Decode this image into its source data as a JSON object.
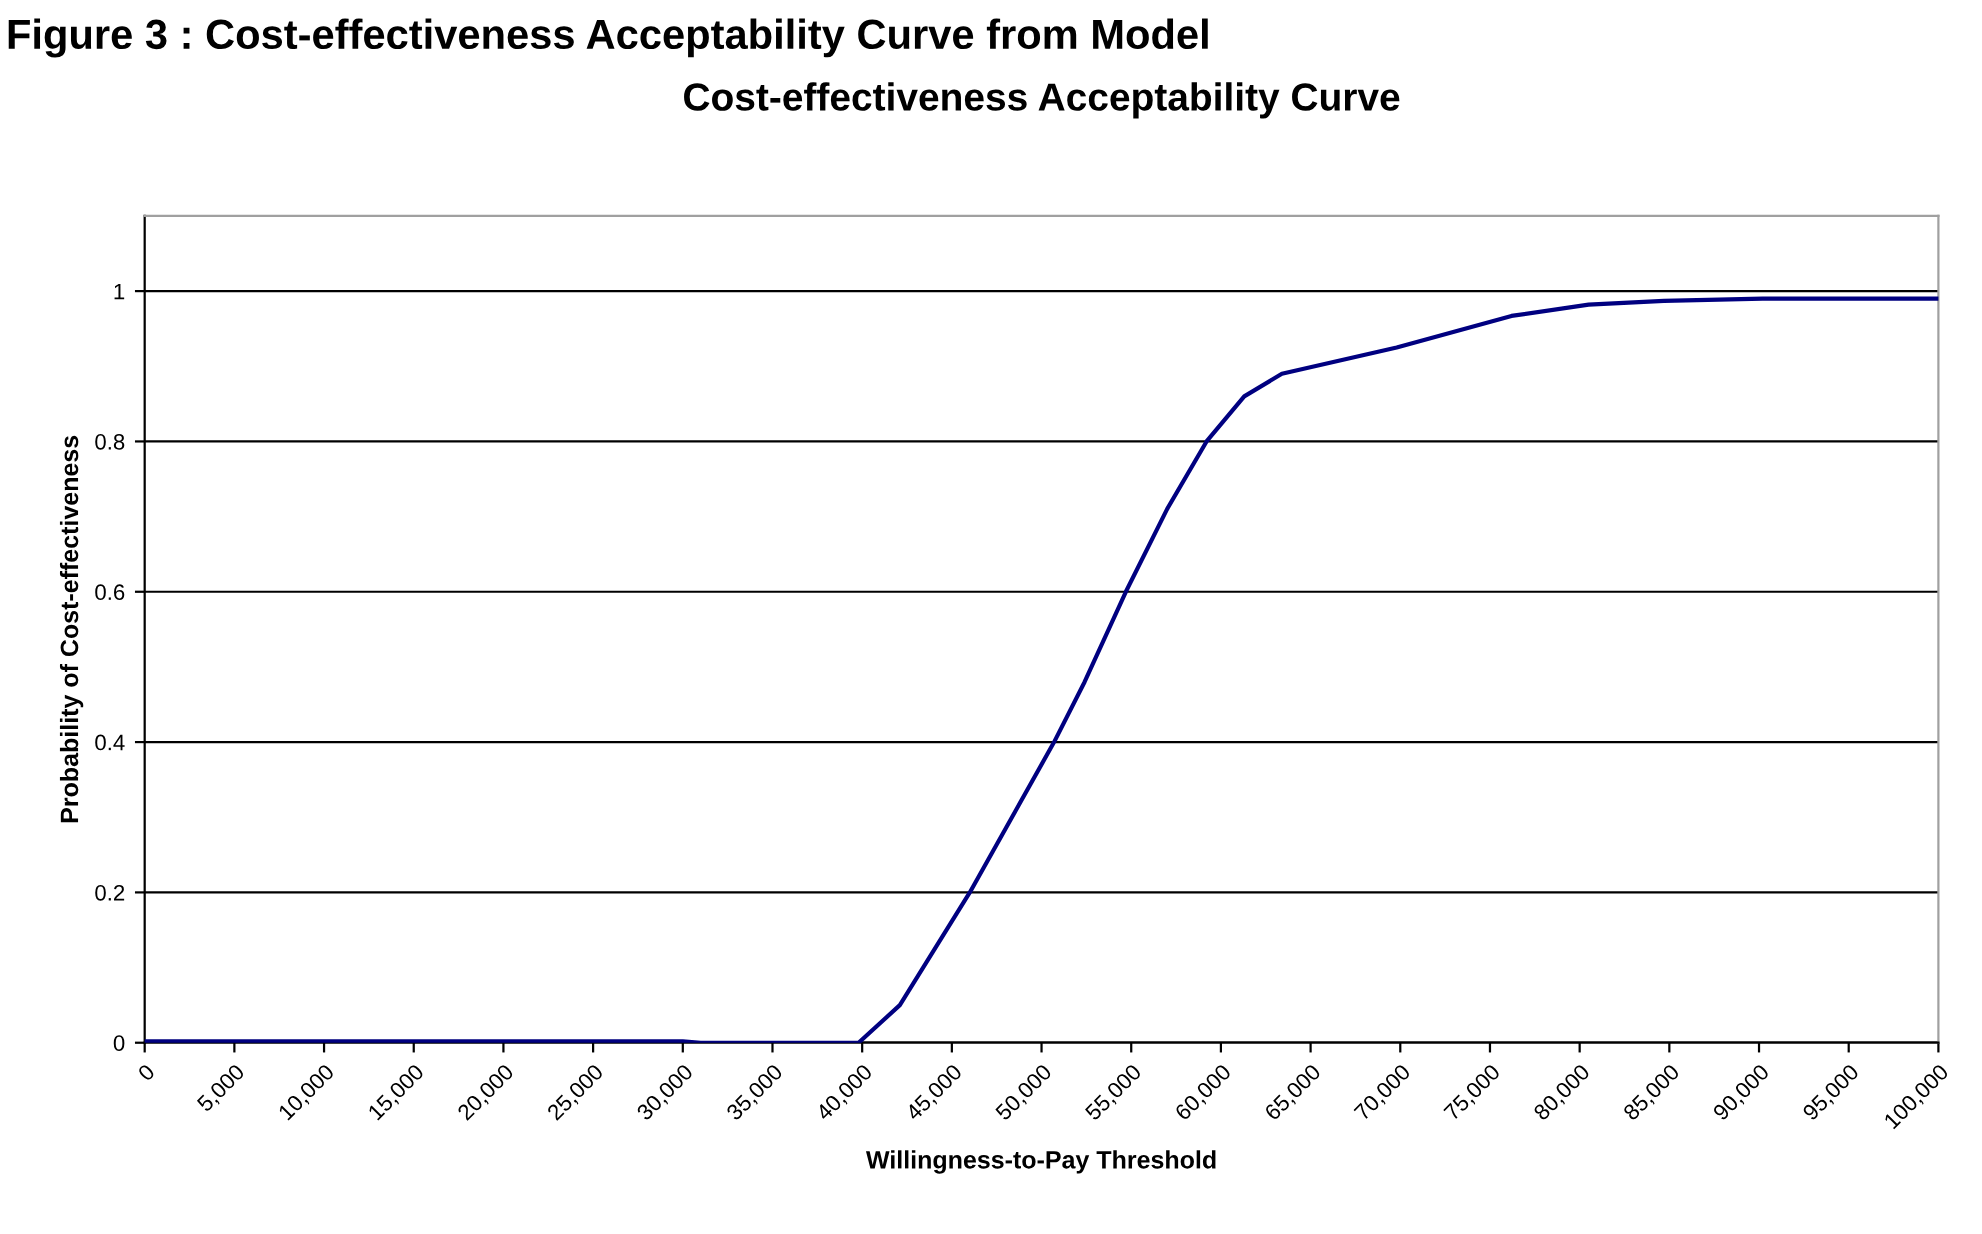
{
  "chart_data": {
    "type": "line",
    "title": "Cost-effectiveness Acceptability Curve",
    "xlabel": "Willingness-to-Pay Threshold",
    "ylabel": "Probability of Cost-effectiveness",
    "annotations": [
      "Figure 3 : Cost-effectiveness Acceptability Curve from Model"
    ],
    "series": [
      {
        "color": "#000080",
        "x": [
          0,
          10000,
          20000,
          30000,
          31000,
          39800,
          42100,
          46000,
          50700,
          52400,
          54700,
          57000,
          59200,
          61300,
          63400,
          69800,
          76200,
          80500,
          84700,
          90200,
          100000
        ],
        "values": [
          0.002,
          0.002,
          0.002,
          0.002,
          0,
          0,
          0.05,
          0.2,
          0.4,
          0.48,
          0.6,
          0.71,
          0.8,
          0.86,
          0.89,
          0.925,
          0.967,
          0.982,
          0.987,
          0.99,
          0.99
        ]
      }
    ],
    "xlim": [
      0,
      100000
    ],
    "xticks": [
      0,
      {
        "value": 5000,
        "label": "5,000"
      },
      {
        "value": 10000,
        "label": "10,000"
      },
      {
        "value": 15000,
        "label": "15,000"
      },
      {
        "value": 20000,
        "label": "20,000"
      },
      {
        "value": 25000,
        "label": "25,000"
      },
      {
        "value": 30000,
        "label": "30,000"
      },
      {
        "value": 35000,
        "label": "35,000"
      },
      {
        "value": 40000,
        "label": "40,000"
      },
      {
        "value": 45000,
        "label": "45,000"
      },
      {
        "value": 50000,
        "label": "50,000"
      },
      {
        "value": 55000,
        "label": "55,000"
      },
      {
        "value": 60000,
        "label": "60,000"
      },
      {
        "value": 65000,
        "label": "65,000"
      },
      {
        "value": 70000,
        "label": "70,000"
      },
      {
        "value": 75000,
        "label": "75,000"
      },
      {
        "value": 80000,
        "label": "80,000"
      },
      {
        "value": 85000,
        "label": "85,000"
      },
      {
        "value": 90000,
        "label": "90,000"
      },
      {
        "value": 95000,
        "label": "95,000"
      },
      {
        "value": 100000,
        "label": "100,000"
      }
    ],
    "ylim": [
      0,
      1.1
    ],
    "yticks": [
      0,
      0.2,
      0.4,
      0.6,
      0.8,
      1
    ],
    "grid": "y",
    "legend": false,
    "marker": "none",
    "line_style": "solid"
  }
}
